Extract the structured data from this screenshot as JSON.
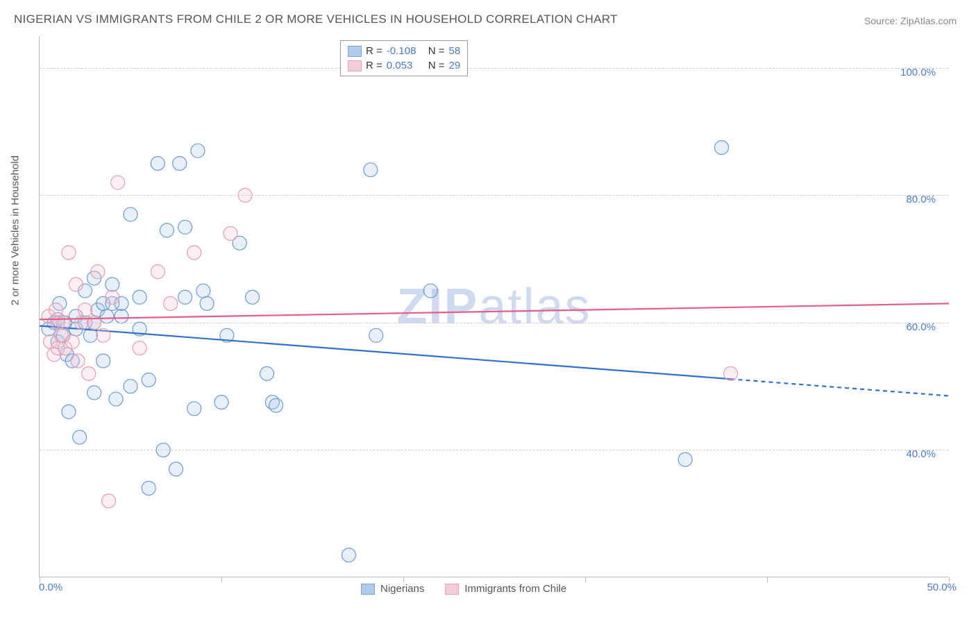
{
  "title": "NIGERIAN VS IMMIGRANTS FROM CHILE 2 OR MORE VEHICLES IN HOUSEHOLD CORRELATION CHART",
  "source_label": "Source:",
  "source_site": "ZipAtlas.com",
  "ylabel": "2 or more Vehicles in Household",
  "watermark_bold": "ZIP",
  "watermark_light": "atlas",
  "chart": {
    "type": "scatter",
    "xlim": [
      0,
      50
    ],
    "ylim": [
      20,
      105
    ],
    "xtick_labels": [
      "0.0%",
      "50.0%"
    ],
    "ytick_values": [
      40,
      60,
      80,
      100
    ],
    "ytick_labels": [
      "40.0%",
      "60.0%",
      "80.0%",
      "100.0%"
    ],
    "grid_color": "#cccccc",
    "axis_color": "#bbbbbb",
    "tick_label_color": "#4878d0",
    "background_color": "#ffffff",
    "marker_radius": 10,
    "marker_stroke_width": 1.2,
    "marker_fill_opacity": 0.28,
    "trend_line_width": 2.2,
    "series": [
      {
        "name": "Nigerians",
        "color_stroke": "#6a9ad4",
        "color_fill": "#a9c6eb",
        "trend_color": "#2f6fd0",
        "trend": {
          "x1": 0,
          "y1": 59.5,
          "x2": 50,
          "y2": 48.5,
          "dash_start_x": 38
        },
        "R": "-0.108",
        "N": "58",
        "points": [
          [
            0.5,
            59
          ],
          [
            0.8,
            60
          ],
          [
            1.0,
            60.5
          ],
          [
            1.0,
            57
          ],
          [
            1.1,
            63
          ],
          [
            1.3,
            58
          ],
          [
            1.4,
            60
          ],
          [
            1.6,
            46
          ],
          [
            1.5,
            55
          ],
          [
            1.8,
            54
          ],
          [
            2.0,
            59
          ],
          [
            2.0,
            61
          ],
          [
            2.2,
            42
          ],
          [
            2.5,
            60
          ],
          [
            2.5,
            65
          ],
          [
            2.8,
            58
          ],
          [
            3.0,
            67
          ],
          [
            3.0,
            49
          ],
          [
            3.0,
            60
          ],
          [
            3.2,
            62
          ],
          [
            3.5,
            63
          ],
          [
            3.5,
            54
          ],
          [
            3.7,
            61
          ],
          [
            4.0,
            66
          ],
          [
            4.0,
            63
          ],
          [
            4.2,
            48
          ],
          [
            4.5,
            61
          ],
          [
            4.5,
            63
          ],
          [
            5.0,
            50
          ],
          [
            5.0,
            77
          ],
          [
            5.5,
            59
          ],
          [
            5.5,
            64
          ],
          [
            6.0,
            51
          ],
          [
            6.0,
            34
          ],
          [
            6.5,
            85
          ],
          [
            6.8,
            40
          ],
          [
            7.0,
            74.5
          ],
          [
            7.5,
            37
          ],
          [
            7.7,
            85
          ],
          [
            8.0,
            64
          ],
          [
            8.0,
            75
          ],
          [
            8.5,
            46.5
          ],
          [
            8.7,
            87
          ],
          [
            9.0,
            65
          ],
          [
            9.2,
            63
          ],
          [
            10.0,
            47.5
          ],
          [
            10.3,
            58
          ],
          [
            11.0,
            72.5
          ],
          [
            11.7,
            64
          ],
          [
            12.5,
            52
          ],
          [
            12.8,
            47.5
          ],
          [
            13.0,
            47
          ],
          [
            17.0,
            23.5
          ],
          [
            18.2,
            84
          ],
          [
            18.5,
            58
          ],
          [
            21.5,
            65
          ],
          [
            35.5,
            38.5
          ],
          [
            37.5,
            87.5
          ]
        ]
      },
      {
        "name": "Immigrants from Chile",
        "color_stroke": "#e89ab0",
        "color_fill": "#f5c6d3",
        "trend_color": "#e65c8a",
        "trend": {
          "x1": 0,
          "y1": 60.5,
          "x2": 50,
          "y2": 63.0,
          "dash_start_x": 50
        },
        "R": "0.053",
        "N": "29",
        "points": [
          [
            0.5,
            61
          ],
          [
            0.6,
            57
          ],
          [
            0.8,
            55
          ],
          [
            0.9,
            62
          ],
          [
            1.0,
            56
          ],
          [
            1.0,
            60
          ],
          [
            1.2,
            58
          ],
          [
            1.3,
            60
          ],
          [
            1.4,
            56
          ],
          [
            1.6,
            71
          ],
          [
            1.8,
            57
          ],
          [
            2.0,
            66
          ],
          [
            2.1,
            54
          ],
          [
            2.3,
            60
          ],
          [
            2.5,
            62
          ],
          [
            2.7,
            52
          ],
          [
            3.0,
            60
          ],
          [
            3.2,
            68
          ],
          [
            3.5,
            58
          ],
          [
            3.8,
            32
          ],
          [
            4.0,
            64
          ],
          [
            4.3,
            82
          ],
          [
            5.5,
            56
          ],
          [
            6.5,
            68
          ],
          [
            7.2,
            63
          ],
          [
            8.5,
            71
          ],
          [
            10.5,
            74
          ],
          [
            11.3,
            80
          ],
          [
            38.0,
            52
          ]
        ]
      }
    ]
  },
  "legend_top": {
    "r_label": "R =",
    "n_label": "N ="
  },
  "legend_bottom": {
    "items": [
      "Nigerians",
      "Immigrants from Chile"
    ]
  }
}
